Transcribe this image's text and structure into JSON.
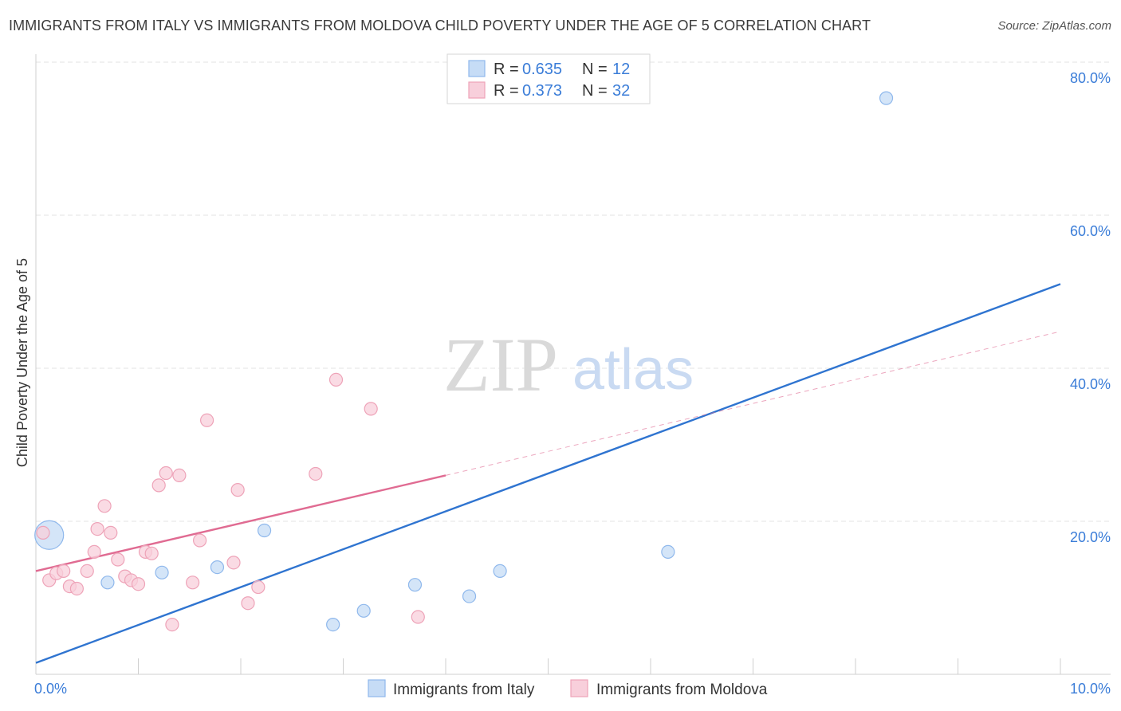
{
  "chart_data": {
    "type": "scatter",
    "title": "IMMIGRANTS FROM ITALY VS IMMIGRANTS FROM MOLDOVA CHILD POVERTY UNDER THE AGE OF 5 CORRELATION CHART",
    "source": "Source: ZipAtlas.com",
    "xlabel": "",
    "ylabel": "Child Poverty Under the Age of 5",
    "xlim": [
      0,
      10
    ],
    "ylim": [
      0,
      80
    ],
    "x_ticks": [
      "0.0%",
      "10.0%"
    ],
    "y_ticks": [
      {
        "value": 80,
        "label": "80.0%"
      },
      {
        "value": 60,
        "label": "60.0%"
      },
      {
        "value": 40,
        "label": "40.0%"
      },
      {
        "value": 20,
        "label": "20.0%"
      }
    ],
    "grid": true,
    "watermark": {
      "part1": "ZIP",
      "part2": "atlas"
    },
    "legend": {
      "r_label": "R =",
      "n_label": "N =",
      "entries": [
        {
          "r": "0.635",
          "n": "12"
        },
        {
          "r": "0.373",
          "n": "32"
        }
      ]
    },
    "series": [
      {
        "name": "Immigrants from Italy",
        "color": "#8fb8ec",
        "fill": "#c6dcf6",
        "line_color": "#2f74d0",
        "trend": {
          "x0": 0,
          "y0": 1.5,
          "x1": 10,
          "y1": 51.0
        },
        "points": [
          {
            "x": 0.13,
            "y": 18.2,
            "big": true
          },
          {
            "x": 0.7,
            "y": 12.0
          },
          {
            "x": 1.23,
            "y": 13.3
          },
          {
            "x": 1.77,
            "y": 14.0
          },
          {
            "x": 2.23,
            "y": 18.8
          },
          {
            "x": 2.9,
            "y": 6.5
          },
          {
            "x": 3.2,
            "y": 8.3
          },
          {
            "x": 3.7,
            "y": 11.7
          },
          {
            "x": 4.23,
            "y": 10.2
          },
          {
            "x": 4.53,
            "y": 13.5
          },
          {
            "x": 6.17,
            "y": 16.0
          },
          {
            "x": 8.3,
            "y": 75.3
          }
        ]
      },
      {
        "name": "Immigrants from Moldova",
        "color": "#eea3b8",
        "fill": "#f8cfdb",
        "line_color": "#e06b92",
        "trend": {
          "x0": 0,
          "y0": 13.5,
          "x1": 4.0,
          "y1": 26.0
        },
        "trend_ext": {
          "x0": 4.0,
          "y0": 26.0,
          "x1": 10,
          "y1": 44.8
        },
        "points": [
          {
            "x": 0.07,
            "y": 18.5
          },
          {
            "x": 0.13,
            "y": 12.3
          },
          {
            "x": 0.2,
            "y": 13.2
          },
          {
            "x": 0.27,
            "y": 13.5
          },
          {
            "x": 0.33,
            "y": 11.5
          },
          {
            "x": 0.4,
            "y": 11.2
          },
          {
            "x": 0.5,
            "y": 13.5
          },
          {
            "x": 0.57,
            "y": 16.0
          },
          {
            "x": 0.6,
            "y": 19.0
          },
          {
            "x": 0.67,
            "y": 22.0
          },
          {
            "x": 0.73,
            "y": 18.5
          },
          {
            "x": 0.8,
            "y": 15.0
          },
          {
            "x": 0.87,
            "y": 12.8
          },
          {
            "x": 0.93,
            "y": 12.3
          },
          {
            "x": 1.0,
            "y": 11.8
          },
          {
            "x": 1.07,
            "y": 16.0
          },
          {
            "x": 1.13,
            "y": 15.8
          },
          {
            "x": 1.2,
            "y": 24.7
          },
          {
            "x": 1.27,
            "y": 26.3
          },
          {
            "x": 1.33,
            "y": 6.5
          },
          {
            "x": 1.4,
            "y": 26.0
          },
          {
            "x": 1.53,
            "y": 12.0
          },
          {
            "x": 1.6,
            "y": 17.5
          },
          {
            "x": 1.67,
            "y": 33.2
          },
          {
            "x": 1.93,
            "y": 14.6
          },
          {
            "x": 1.97,
            "y": 24.1
          },
          {
            "x": 2.07,
            "y": 9.3
          },
          {
            "x": 2.17,
            "y": 11.4
          },
          {
            "x": 2.73,
            "y": 26.2
          },
          {
            "x": 2.93,
            "y": 38.5
          },
          {
            "x": 3.27,
            "y": 34.7
          },
          {
            "x": 3.73,
            "y": 7.5
          }
        ]
      }
    ]
  }
}
